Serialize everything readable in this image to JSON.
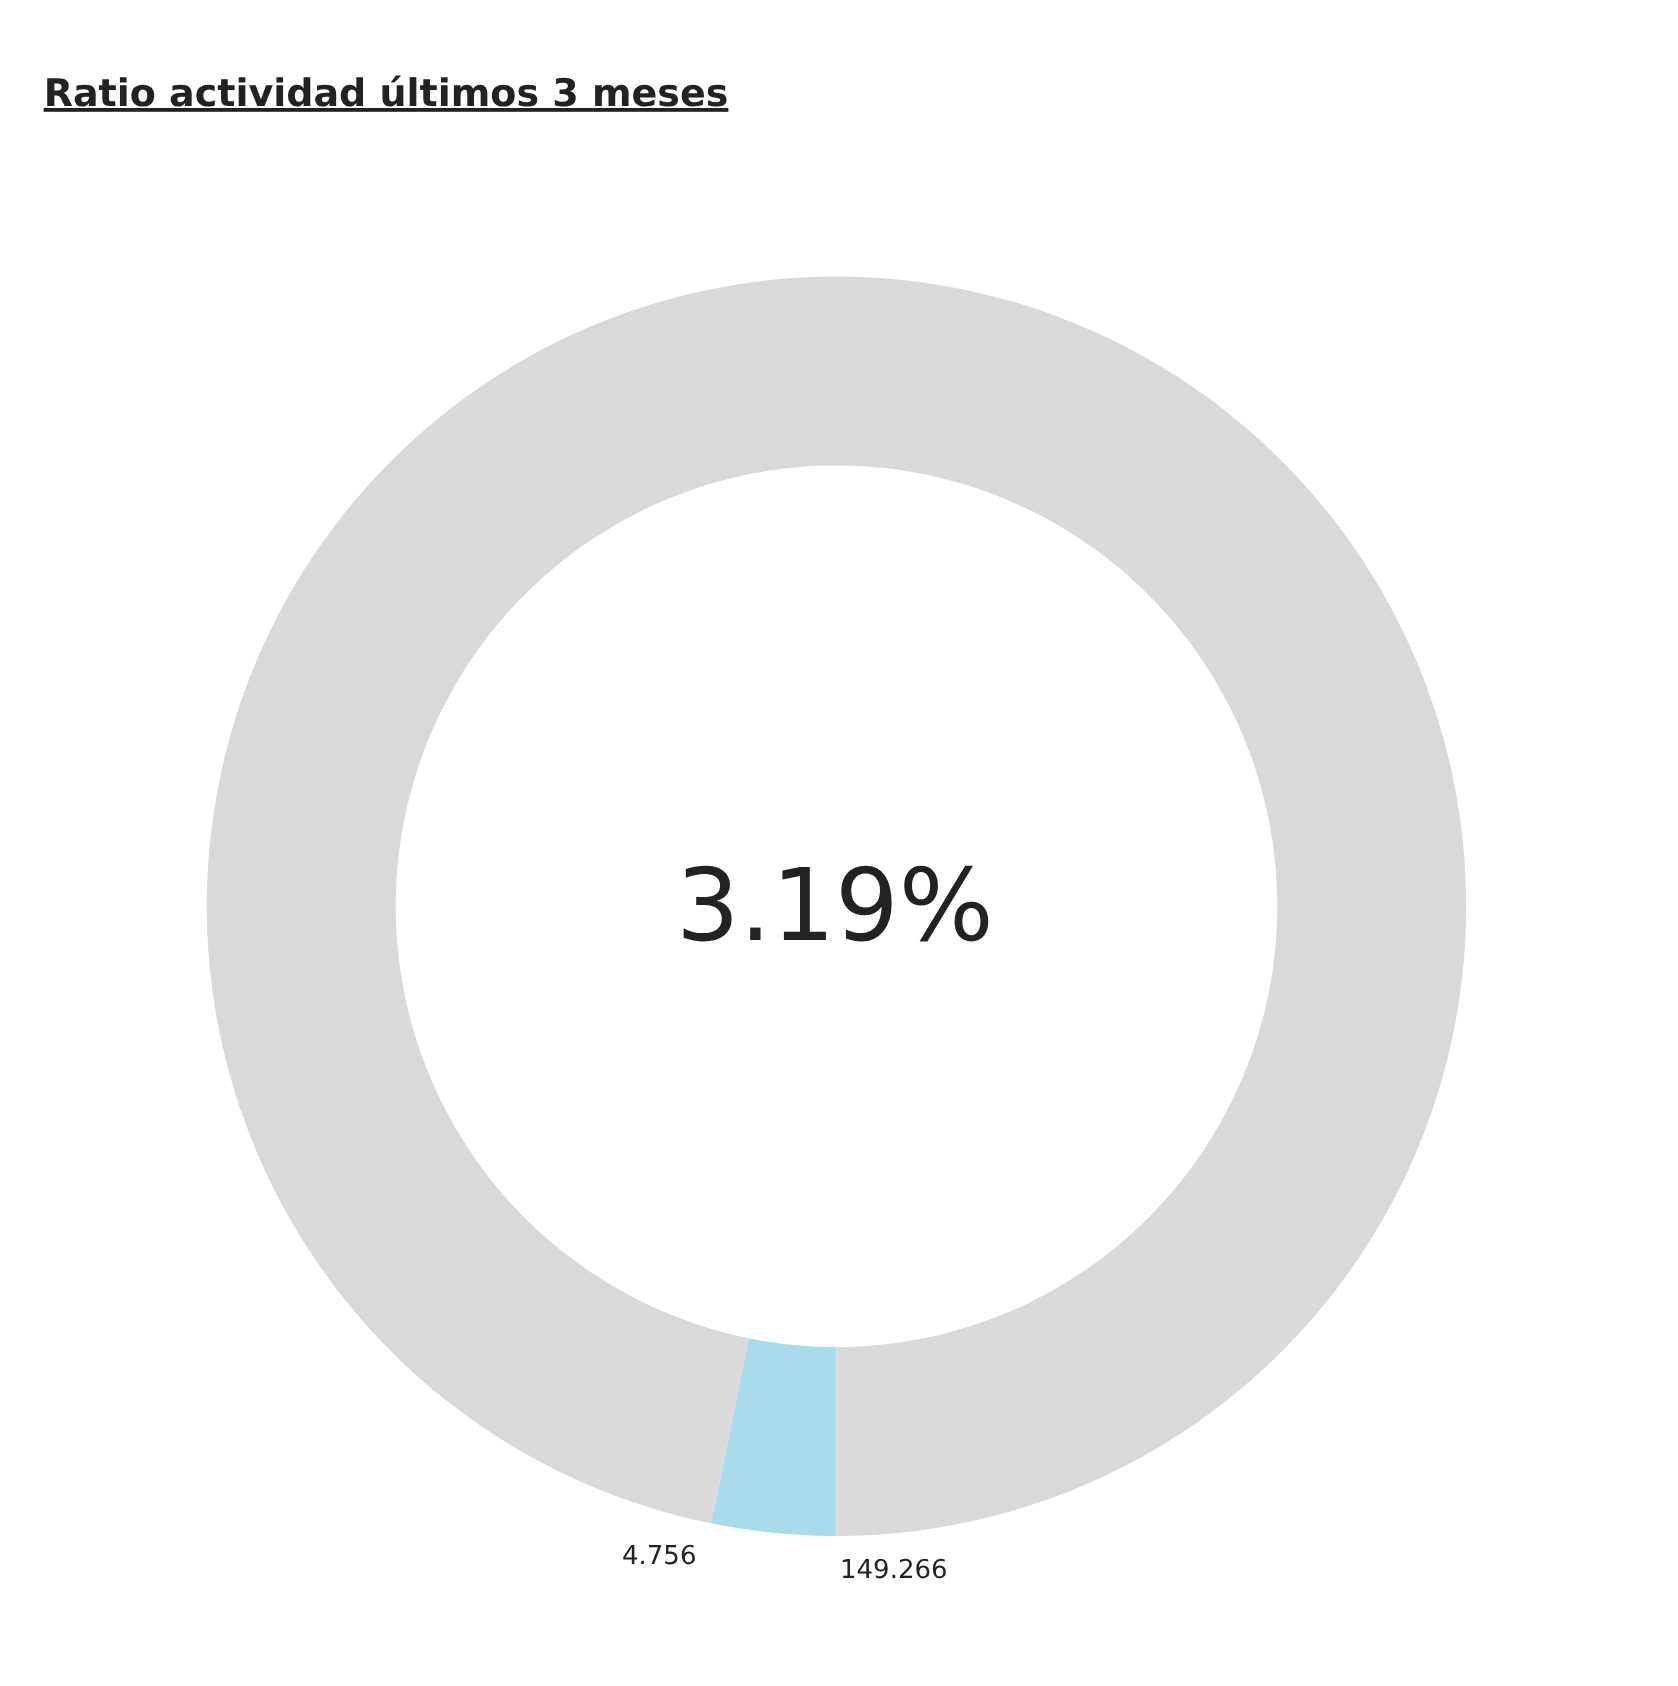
{
  "chart_data": {
    "type": "donut",
    "title": "Ratio actividad últimos 3 meses",
    "categories": [
      null,
      null
    ],
    "values": [
      3.19,
      96.81
    ],
    "colors": [
      "#a8dbec",
      "#d9d9d9"
    ],
    "annotations": [
      "3.19%",
      "4.756",
      "149.266"
    ],
    "legend": false
  }
}
